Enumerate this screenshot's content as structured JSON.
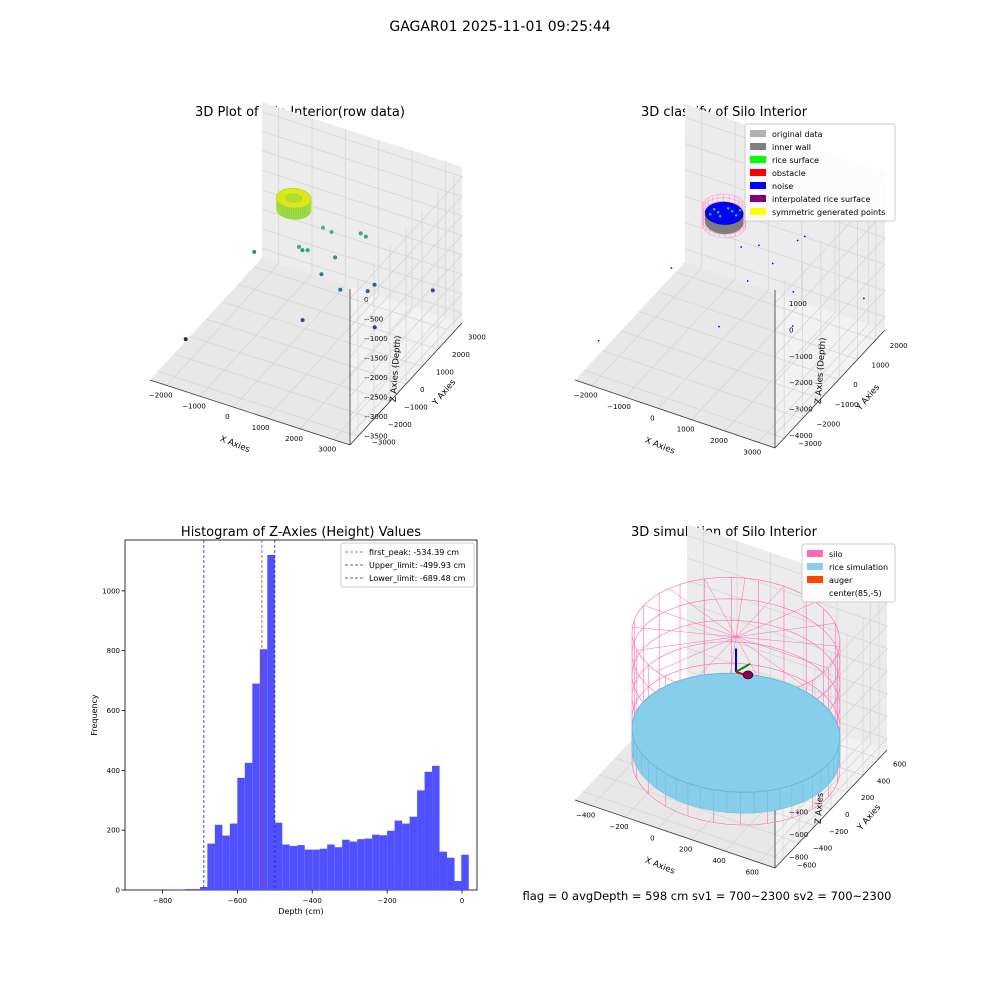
{
  "suptitle": "GAGAR01 2025-11-01 09:25:44",
  "status_line": "flag = 0     avgDepth = 598 cm  sv1 = 700~2300  sv2 = 700~2300",
  "colors": {
    "hist_bar": "#5050ff",
    "first_peak_line": "#e03030",
    "limit_line": "#2020c0",
    "pane_face": "#f2f2f2",
    "grid": "#d6d6d6",
    "original_data": "#b0b0b0",
    "inner_wall": "#808080",
    "rice_surface": "#00ff00",
    "obstacle": "#ff0000",
    "noise": "#0000ff",
    "interpolated_rice_surface": "#800080",
    "symmetric_generated_points": "#ffff00",
    "silo": "#ff69b4",
    "rice_simulation": "#87ceeb",
    "auger": "#ff4500"
  },
  "chart_data": [
    {
      "type": "scatter",
      "projection": "3d",
      "title": "3D Plot of Silo Interior(row data)",
      "xlabel": "X Axies",
      "ylabel": "Y Axies",
      "zlabel": "Z Axies (Depth)",
      "xticks": [
        "−2000",
        "−1000",
        "0",
        "1000",
        "2000",
        "3000"
      ],
      "yticks": [
        "−3000",
        "−2000",
        "−1000",
        "0",
        "1000",
        "2000",
        "3000"
      ],
      "zticks": [
        "0",
        "−500",
        "−1000",
        "−1500",
        "−2000",
        "−2500",
        "−3000",
        "−3500"
      ],
      "xlim": [
        -2200,
        3600
      ],
      "ylim": [
        -3300,
        3300
      ],
      "zlim": [
        -3800,
        200
      ],
      "grid": true,
      "colormap": "viridis (colored by depth)",
      "cluster": {
        "center_x": 0,
        "center_y": 700,
        "radius": 450,
        "z_top": -400,
        "z_bottom": -700
      },
      "outliers": [
        {
          "x": 700,
          "y": 1000,
          "z": -1100
        },
        {
          "x": 900,
          "y": 1100,
          "z": -1200
        },
        {
          "x": 400,
          "y": 200,
          "z": -1300
        },
        {
          "x": 500,
          "y": 500,
          "z": -1500
        },
        {
          "x": 300,
          "y": 600,
          "z": -1600
        },
        {
          "x": 1500,
          "y": 1600,
          "z": -1300
        },
        {
          "x": 1600,
          "y": 1700,
          "z": -1400
        },
        {
          "x": 1100,
          "y": 900,
          "z": -1700
        },
        {
          "x": -900,
          "y": 200,
          "z": -1800
        },
        {
          "x": 900,
          "y": 500,
          "z": -2000
        },
        {
          "x": 1400,
          "y": 600,
          "z": -2300
        },
        {
          "x": 1900,
          "y": 1600,
          "z": -2500
        },
        {
          "x": 1800,
          "y": 1400,
          "z": -2600
        },
        {
          "x": 3000,
          "y": 2800,
          "z": -2900
        },
        {
          "x": 2300,
          "y": 800,
          "z": -3100
        },
        {
          "x": 700,
          "y": -200,
          "z": -2900
        },
        {
          "x": -2000,
          "y": -1600,
          "z": -3500
        }
      ]
    },
    {
      "type": "scatter",
      "projection": "3d",
      "title": "3D classify of Silo Interior",
      "xlabel": "X Axies",
      "ylabel": "Y Axies",
      "zlabel": "Z Axies (Depth)",
      "xticks": [
        "−2000",
        "−1000",
        "0",
        "1000",
        "2000",
        "3000"
      ],
      "yticks": [
        "−3000",
        "−2000",
        "−1000",
        "0",
        "1000",
        "2000"
      ],
      "zticks": [
        "1000",
        "0",
        "−1000",
        "−2000",
        "−3000",
        "−4000"
      ],
      "xlim": [
        -2200,
        3600
      ],
      "ylim": [
        -3300,
        2700
      ],
      "zlim": [
        -4600,
        1300
      ],
      "grid": true,
      "legend": {
        "position": "upper-right",
        "entries": [
          {
            "label": "original data",
            "color_key": "original_data"
          },
          {
            "label": "inner wall",
            "color_key": "inner_wall"
          },
          {
            "label": "rice surface",
            "color_key": "rice_surface"
          },
          {
            "label": "obstacle",
            "color_key": "obstacle"
          },
          {
            "label": "noise",
            "color_key": "noise"
          },
          {
            "label": "interpolated rice surface",
            "color_key": "interpolated_rice_surface"
          },
          {
            "label": "symmetric generated points",
            "color_key": "symmetric_generated_points"
          }
        ]
      },
      "cluster": {
        "center_x": 0,
        "center_y": 700,
        "radius": 480,
        "z_top": -100,
        "z_bottom": -700
      },
      "noise_points": [
        {
          "x": 600,
          "y": 500,
          "z": -1200
        },
        {
          "x": 900,
          "y": 900,
          "z": -1300
        },
        {
          "x": 1600,
          "y": 1700,
          "z": -1400
        },
        {
          "x": 1700,
          "y": 1900,
          "z": -1350
        },
        {
          "x": 1300,
          "y": 900,
          "z": -1800
        },
        {
          "x": -1000,
          "y": -300,
          "z": -2100
        },
        {
          "x": 1000,
          "y": 100,
          "z": -2000
        },
        {
          "x": 1900,
          "y": 900,
          "z": -2600
        },
        {
          "x": 3200,
          "y": 2300,
          "z": -3300
        },
        {
          "x": 2200,
          "y": 300,
          "z": -3300
        },
        {
          "x": 700,
          "y": -900,
          "z": -3100
        },
        {
          "x": -2100,
          "y": -2200,
          "z": -3900
        }
      ]
    },
    {
      "type": "bar",
      "title": "Histogram of Z-Axies (Height) Values",
      "xlabel": "Depth (cm)",
      "ylabel": "Frequency",
      "xlim": [
        -900,
        40
      ],
      "ylim": [
        0,
        1170
      ],
      "xticks": [
        -800,
        -600,
        -400,
        -200,
        0
      ],
      "xtick_labels": [
        "−800",
        "−600",
        "−400",
        "−200",
        "0"
      ],
      "yticks": [
        0,
        200,
        400,
        600,
        800,
        1000
      ],
      "yticks_labels": [
        "0",
        "200",
        "400",
        "600",
        "800",
        "1000"
      ],
      "bin_width": 20,
      "bins": [
        {
          "left": -780,
          "value": 2
        },
        {
          "left": -760,
          "value": 2
        },
        {
          "left": -740,
          "value": 3
        },
        {
          "left": -720,
          "value": 3
        },
        {
          "left": -700,
          "value": 10
        },
        {
          "left": -680,
          "value": 155
        },
        {
          "left": -660,
          "value": 218
        },
        {
          "left": -640,
          "value": 182
        },
        {
          "left": -620,
          "value": 222
        },
        {
          "left": -600,
          "value": 375
        },
        {
          "left": -580,
          "value": 425
        },
        {
          "left": -560,
          "value": 690
        },
        {
          "left": -540,
          "value": 805
        },
        {
          "left": -520,
          "value": 1120
        },
        {
          "left": -500,
          "value": 225
        },
        {
          "left": -480,
          "value": 152
        },
        {
          "left": -460,
          "value": 147
        },
        {
          "left": -440,
          "value": 150
        },
        {
          "left": -420,
          "value": 135
        },
        {
          "left": -400,
          "value": 135
        },
        {
          "left": -380,
          "value": 138
        },
        {
          "left": -360,
          "value": 152
        },
        {
          "left": -340,
          "value": 143
        },
        {
          "left": -320,
          "value": 168
        },
        {
          "left": -300,
          "value": 162
        },
        {
          "left": -280,
          "value": 170
        },
        {
          "left": -260,
          "value": 172
        },
        {
          "left": -240,
          "value": 185
        },
        {
          "left": -220,
          "value": 183
        },
        {
          "left": -200,
          "value": 198
        },
        {
          "left": -180,
          "value": 232
        },
        {
          "left": -160,
          "value": 222
        },
        {
          "left": -140,
          "value": 245
        },
        {
          "left": -120,
          "value": 333
        },
        {
          "left": -100,
          "value": 395
        },
        {
          "left": -80,
          "value": 415
        },
        {
          "left": -60,
          "value": 128
        },
        {
          "left": -40,
          "value": 108
        },
        {
          "left": -20,
          "value": 30
        },
        {
          "left": -2,
          "value": 118
        }
      ],
      "vlines": [
        {
          "x": -534.39,
          "label": "first_peak: -534.39 cm",
          "color_key": "first_peak_line"
        },
        {
          "x": -499.93,
          "label": "Upper_limit: -499.93 cm",
          "color_key": "limit_line"
        },
        {
          "x": -689.48,
          "label": "Lower_limit: -689.48 cm",
          "color_key": "limit_line"
        }
      ],
      "legend": {
        "position": "upper-right"
      }
    },
    {
      "type": "surface",
      "projection": "3d",
      "title": "3D simulation of Silo Interior",
      "xlabel": "X Axies",
      "ylabel": "Y Axies",
      "zlabel": "Z Axies (Depth)",
      "xticks": [
        "−400",
        "−200",
        "0",
        "200",
        "400",
        "600"
      ],
      "yticks": [
        "−600",
        "−400",
        "−200",
        "0",
        "200",
        "400",
        "600"
      ],
      "zticks": [
        "400",
        "200",
        "0",
        "−200",
        "−400",
        "−600",
        "−800"
      ],
      "xlim": [
        -600,
        700
      ],
      "ylim": [
        -700,
        700
      ],
      "zlim": [
        -900,
        450
      ],
      "grid": true,
      "legend": {
        "position": "upper-right",
        "entries": [
          {
            "label": "silo",
            "color_key": "silo"
          },
          {
            "label": "rice simulation",
            "color_key": "rice_simulation"
          },
          {
            "label": "auger",
            "color_key": "auger"
          },
          {
            "label": "center(85,-5)",
            "color_key": null
          }
        ]
      },
      "silo": {
        "center_x": 85,
        "center_y": -5,
        "radius": 600,
        "z_top": 300,
        "z_bottom": -800
      },
      "rice_surface": {
        "center_x": 85,
        "center_y": -5,
        "radius": 600,
        "z_top": -520,
        "z_bottom": -700
      },
      "center": {
        "x": 85,
        "y": -5
      }
    }
  ]
}
